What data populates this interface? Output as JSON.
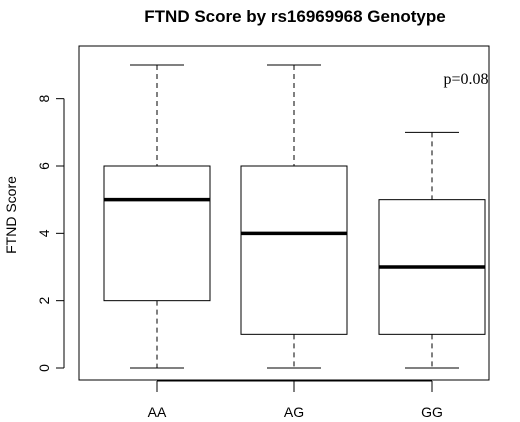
{
  "chart_data": {
    "type": "box",
    "title": "FTND Score by rs16969968 Genotype",
    "xlabel": "",
    "ylabel": "FTND Score",
    "categories": [
      "AA",
      "AG",
      "GG"
    ],
    "boxes": [
      {
        "category": "AA",
        "min": 0,
        "q1": 2,
        "median": 5,
        "q3": 6,
        "max": 9
      },
      {
        "category": "AG",
        "min": 0,
        "q1": 1,
        "median": 4,
        "q3": 6,
        "max": 9
      },
      {
        "category": "GG",
        "min": 0,
        "q1": 1,
        "median": 3,
        "q3": 5,
        "max": 7
      }
    ],
    "ylim": [
      0,
      9
    ],
    "yticks": [
      0,
      2,
      4,
      6,
      8
    ],
    "annotation": "p=0.08",
    "grid": false
  }
}
